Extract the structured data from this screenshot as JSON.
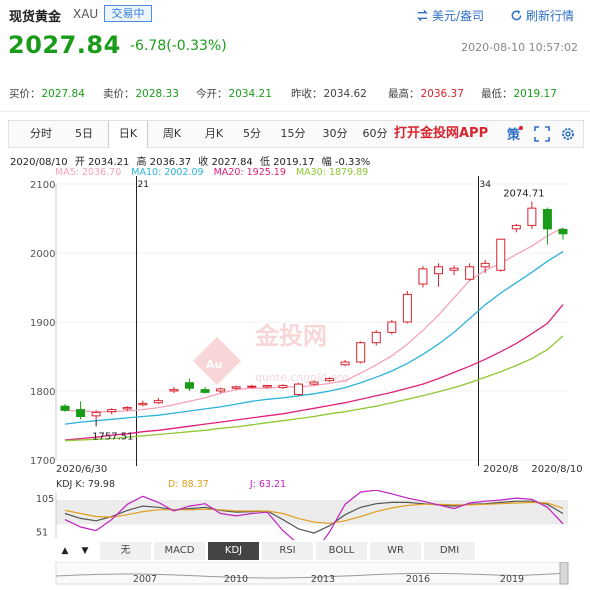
{
  "header": {
    "title": "现货黄金",
    "code": "XAU",
    "trade_badge": "交易中",
    "currency_action": "美元/盎司",
    "refresh_action": "刷新行情"
  },
  "quote": {
    "price": "2027.84",
    "change": "-6.78(-0.33%)",
    "datetime": "2020-08-10 10:57:02"
  },
  "stats": [
    {
      "label": "买价：",
      "value": "2027.84",
      "color": "green"
    },
    {
      "label": "卖价：",
      "value": "2028.33",
      "color": "green"
    },
    {
      "label": "今开：",
      "value": "2034.21",
      "color": "green"
    },
    {
      "label": "昨收：",
      "value": "2034.62",
      "color": "plain"
    },
    {
      "label": "最高：",
      "value": "2036.37",
      "color": "red"
    },
    {
      "label": "最低：",
      "value": "2019.17",
      "color": "green"
    }
  ],
  "tabs": [
    "分时",
    "5日",
    "日K",
    "周K",
    "月K",
    "5分",
    "15分",
    "30分",
    "60分"
  ],
  "active_tab": "日K",
  "app_promo": "打开金投网APP",
  "tool_icons": [
    "strategy-icon",
    "fullscreen-icon",
    "settings-icon"
  ],
  "ohlc": {
    "date": "2020/08/10",
    "open": "开 2034.21",
    "high": "高 2036.37",
    "close": "收 2027.84",
    "low": "低 2019.17",
    "amp": "幅 -0.33%"
  },
  "ma_legend": [
    {
      "label": "MA5: 2036.70",
      "color": "#f4a3b8"
    },
    {
      "label": "MA10: 2002.09",
      "color": "#2bb3d8"
    },
    {
      "label": "MA20: 1925.19",
      "color": "#e0207a"
    },
    {
      "label": "MA30: 1879.89",
      "color": "#8fc832"
    }
  ],
  "indicator_tabs": [
    "无",
    "MACD",
    "KDJ",
    "RSI",
    "BOLL",
    "WR",
    "DMI"
  ],
  "active_indicator": "KDJ",
  "kdj_legend": [
    {
      "label": "KDJ  K: 79.98",
      "color": "#333333"
    },
    {
      "label": "D: 88.37",
      "color": "#e0a020"
    },
    {
      "label": "J: 63.21",
      "color": "#c020c0"
    }
  ],
  "watermark": {
    "brand": "金投网",
    "url": "quote.cngold.org"
  },
  "chart_data": {
    "type": "candlestick",
    "title": "",
    "ylim": [
      1700,
      2100
    ],
    "y_ticks": [
      "2100",
      "2000",
      "1900",
      "1800",
      "1700"
    ],
    "x_labels": [
      "2020/6/30",
      "2020/8",
      "2020/8/10"
    ],
    "markers": [
      {
        "label": "21"
      },
      {
        "label": "34"
      }
    ],
    "annotations": {
      "high": "2074.71",
      "low": "1757.51"
    },
    "candles": [
      {
        "o": 1778,
        "c": 1772,
        "h": 1781,
        "l": 1770
      },
      {
        "o": 1773,
        "c": 1763,
        "h": 1785,
        "l": 1759
      },
      {
        "o": 1764,
        "c": 1769,
        "h": 1772,
        "l": 1757.51
      },
      {
        "o": 1770,
        "c": 1773,
        "h": 1775,
        "l": 1766
      },
      {
        "o": 1774,
        "c": 1776,
        "h": 1778,
        "l": 1771
      },
      {
        "o": 1780,
        "c": 1782,
        "h": 1786,
        "l": 1778
      },
      {
        "o": 1783,
        "c": 1786,
        "h": 1790,
        "l": 1781
      },
      {
        "o": 1800,
        "c": 1802,
        "h": 1806,
        "l": 1797
      },
      {
        "o": 1812,
        "c": 1804,
        "h": 1818,
        "l": 1800
      },
      {
        "o": 1802,
        "c": 1798,
        "h": 1806,
        "l": 1796
      },
      {
        "o": 1800,
        "c": 1803,
        "h": 1805,
        "l": 1797
      },
      {
        "o": 1804,
        "c": 1806,
        "h": 1808,
        "l": 1802
      },
      {
        "o": 1806,
        "c": 1807,
        "h": 1809,
        "l": 1804
      },
      {
        "o": 1806,
        "c": 1808,
        "h": 1809,
        "l": 1804
      },
      {
        "o": 1805,
        "c": 1808,
        "h": 1810,
        "l": 1803
      },
      {
        "o": 1795,
        "c": 1810,
        "h": 1812,
        "l": 1793
      },
      {
        "o": 1810,
        "c": 1813,
        "h": 1815,
        "l": 1808
      },
      {
        "o": 1815,
        "c": 1818,
        "h": 1820,
        "l": 1813
      },
      {
        "o": 1838,
        "c": 1842,
        "h": 1845,
        "l": 1836
      },
      {
        "o": 1842,
        "c": 1870,
        "h": 1872,
        "l": 1840
      },
      {
        "o": 1870,
        "c": 1885,
        "h": 1888,
        "l": 1866
      },
      {
        "o": 1885,
        "c": 1900,
        "h": 1903,
        "l": 1882
      },
      {
        "o": 1900,
        "c": 1940,
        "h": 1945,
        "l": 1898
      },
      {
        "o": 1955,
        "c": 1977,
        "h": 1981,
        "l": 1950
      },
      {
        "o": 1970,
        "c": 1980,
        "h": 1985,
        "l": 1951
      },
      {
        "o": 1975,
        "c": 1978,
        "h": 1982,
        "l": 1968
      },
      {
        "o": 1962,
        "c": 1980,
        "h": 1985,
        "l": 1960
      },
      {
        "o": 1980,
        "c": 1985,
        "h": 1990,
        "l": 1971
      },
      {
        "o": 1975,
        "c": 2020,
        "h": 2021,
        "l": 1973
      },
      {
        "o": 2035,
        "c": 2040,
        "h": 2042,
        "l": 2030
      },
      {
        "o": 2040,
        "c": 2065,
        "h": 2074.71,
        "l": 2035
      },
      {
        "o": 2063,
        "c": 2035,
        "h": 2066,
        "l": 2012
      },
      {
        "o": 2034.21,
        "c": 2027.84,
        "h": 2036.37,
        "l": 2019.17
      }
    ],
    "ma_series": [
      {
        "name": "MA5",
        "color": "#f4a3b8",
        "values": [
          1772,
          1771,
          1770,
          1770,
          1771,
          1773,
          1776,
          1780,
          1785,
          1790,
          1797,
          1802,
          1804,
          1804,
          1806,
          1806,
          1808,
          1811,
          1815,
          1826,
          1838,
          1851,
          1868,
          1888,
          1910,
          1935,
          1960,
          1975,
          1985,
          1998,
          2010,
          2025,
          2036.7
        ]
      },
      {
        "name": "MA10",
        "color": "#2bb3d8",
        "values": [
          1752,
          1755,
          1757,
          1759,
          1761,
          1763,
          1765,
          1768,
          1771,
          1774,
          1777,
          1781,
          1785,
          1788,
          1790,
          1793,
          1796,
          1800,
          1805,
          1812,
          1820,
          1829,
          1840,
          1853,
          1868,
          1885,
          1905,
          1925,
          1942,
          1957,
          1972,
          1988,
          2002.09
        ]
      },
      {
        "name": "MA20",
        "color": "#e0207a",
        "values": [
          1729,
          1731,
          1733,
          1736,
          1738,
          1741,
          1743,
          1746,
          1749,
          1752,
          1755,
          1758,
          1761,
          1764,
          1767,
          1771,
          1775,
          1779,
          1783,
          1788,
          1793,
          1798,
          1804,
          1810,
          1818,
          1827,
          1836,
          1846,
          1857,
          1869,
          1883,
          1898,
          1925.19
        ]
      },
      {
        "name": "MA30",
        "color": "#8fc832",
        "values": [
          1728,
          1729,
          1730,
          1731,
          1733,
          1735,
          1737,
          1739,
          1741,
          1743,
          1746,
          1748,
          1751,
          1754,
          1757,
          1760,
          1763,
          1767,
          1770,
          1774,
          1778,
          1783,
          1788,
          1793,
          1799,
          1805,
          1812,
          1820,
          1828,
          1837,
          1847,
          1860,
          1879.89
        ]
      }
    ],
    "kdj": {
      "ylim": [
        40,
        115
      ],
      "y_ticks": [
        "105",
        "51"
      ],
      "K": [
        80,
        72,
        68,
        75,
        85,
        92,
        90,
        86,
        88,
        90,
        85,
        82,
        83,
        84,
        70,
        55,
        48,
        60,
        78,
        90,
        96,
        98,
        98,
        96,
        94,
        92,
        95,
        96,
        98,
        100,
        100,
        95,
        79.98
      ],
      "D": [
        85,
        80,
        75,
        74,
        78,
        83,
        86,
        86,
        86,
        87,
        86,
        84,
        84,
        84,
        80,
        72,
        66,
        64,
        68,
        75,
        83,
        89,
        93,
        95,
        95,
        94,
        94,
        95,
        96,
        97,
        98,
        97,
        88.37
      ],
      "J": [
        70,
        58,
        52,
        70,
        95,
        108,
        98,
        84,
        92,
        96,
        80,
        76,
        80,
        82,
        52,
        30,
        15,
        50,
        95,
        115,
        118,
        112,
        105,
        100,
        94,
        88,
        97,
        100,
        102,
        105,
        103,
        90,
        63.21
      ]
    },
    "navigator": {
      "years": [
        "2007",
        "2010",
        "2013",
        "2016",
        "2019"
      ]
    }
  }
}
